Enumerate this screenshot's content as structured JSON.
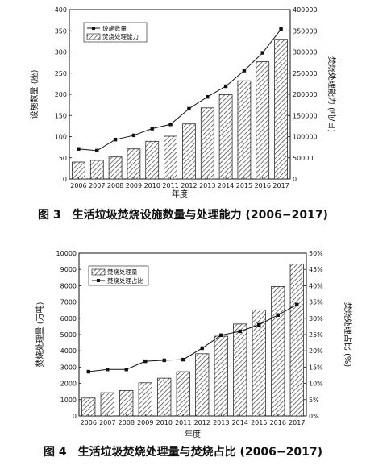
{
  "chart_data": [
    {
      "type": "bar",
      "categories": [
        "2006",
        "2007",
        "2008",
        "2009",
        "2010",
        "2011",
        "2012",
        "2013",
        "2014",
        "2015",
        "2016",
        "2017"
      ],
      "series": [
        {
          "name": "设施数量",
          "type": "line",
          "axis": "left",
          "values": [
            71,
            67,
            93,
            103,
            119,
            129,
            166,
            194,
            219,
            256,
            298,
            354
          ]
        },
        {
          "name": "焚烧处理能力",
          "type": "bar",
          "axis": "right",
          "values": [
            40000,
            44000,
            52000,
            71000,
            89000,
            101000,
            130000,
            168000,
            199000,
            232000,
            277000,
            330000
          ]
        }
      ],
      "xlabel": "年度",
      "ylabel_left": "设施数量 (座)",
      "ylabel_right": "焚烧处理能力 (吨/日)",
      "ylim_left": [
        0,
        400
      ],
      "yticks_left": [
        "0",
        "50",
        "100",
        "150",
        "200",
        "250",
        "300",
        "350",
        "400"
      ],
      "ylim_right": [
        0,
        400000
      ],
      "yticks_right": [
        "0",
        "50000",
        "100000",
        "150000",
        "200000",
        "250000",
        "300000",
        "350000",
        "400000"
      ],
      "legend_position": "top-left",
      "legend": [
        "设施数量",
        "焚烧处理能力"
      ],
      "caption": "图 3　生活垃圾焚烧设施数量与处理能力 (2006−2017)"
    },
    {
      "type": "bar",
      "categories": [
        "2006",
        "2007",
        "2008",
        "2009",
        "2010",
        "2011",
        "2012",
        "2013",
        "2014",
        "2015",
        "2016",
        "2017"
      ],
      "series": [
        {
          "name": "焚烧处理量",
          "type": "bar",
          "axis": "left",
          "values": [
            1100,
            1430,
            1570,
            2040,
            2320,
            2720,
            3820,
            4900,
            5650,
            6520,
            7950,
            9320
          ]
        },
        {
          "name": "焚烧处理占比",
          "type": "line",
          "axis": "right",
          "values": [
            13.6,
            14.3,
            14.3,
            16.8,
            17.1,
            17.3,
            20.8,
            24.8,
            26.0,
            28.0,
            31.0,
            34.2
          ]
        }
      ],
      "xlabel": "年度",
      "ylabel_left": "焚烧处理量 (万吨)",
      "ylabel_right": "焚烧处理占比 (%)",
      "ylim_left": [
        0,
        10000
      ],
      "yticks_left": [
        "0",
        "1000",
        "2000",
        "3000",
        "4000",
        "5000",
        "6000",
        "7000",
        "8000",
        "9000",
        "10000"
      ],
      "ylim_right": [
        0,
        50
      ],
      "yticks_right": [
        "0%",
        "5%",
        "10%",
        "15%",
        "20%",
        "25%",
        "30%",
        "35%",
        "40%",
        "45%",
        "50%"
      ],
      "legend_position": "top-left",
      "legend": [
        "焚烧处理量",
        "焚烧处理占比"
      ],
      "caption": "图 4　生活垃圾焚烧处理量与焚烧占比 (2006−2017)"
    }
  ]
}
